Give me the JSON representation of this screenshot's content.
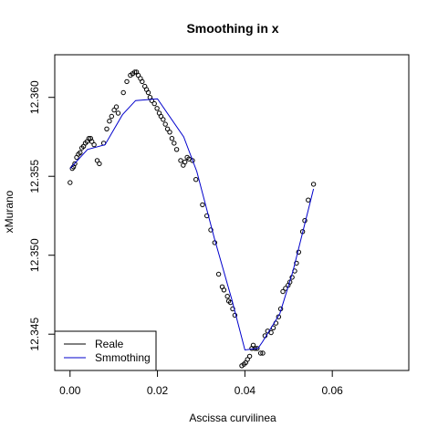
{
  "chart_data": {
    "type": "scatter",
    "title": "Smoothing in x",
    "xlabel": "Ascissa curvilinea",
    "ylabel": "xMurano",
    "xlim": [
      -0.0035,
      0.0775
    ],
    "ylim": [
      12.3427,
      12.3627
    ],
    "x_ticks": [
      0.0,
      0.02,
      0.04,
      0.06
    ],
    "x_tick_labels": [
      "0.00",
      "0.02",
      "0.04",
      "0.06"
    ],
    "y_ticks": [
      12.345,
      12.35,
      12.355,
      12.36
    ],
    "y_tick_labels": [
      "12.345",
      "12.350",
      "12.355",
      "12.360"
    ],
    "grid": false,
    "legend": {
      "position": "bottom-left",
      "entries": [
        {
          "label": "Reale",
          "color": "#000000"
        },
        {
          "label": "Smmothing",
          "color": "#0000cc"
        }
      ]
    },
    "series": [
      {
        "name": "Reale",
        "kind": "points",
        "color": "#000000",
        "points": [
          [
            0.0,
            12.3546
          ],
          [
            0.0005,
            12.3555
          ],
          [
            0.0008,
            12.3556
          ],
          [
            0.0011,
            12.3558
          ],
          [
            0.0015,
            12.3562
          ],
          [
            0.0019,
            12.3564
          ],
          [
            0.0023,
            12.3565
          ],
          [
            0.0027,
            12.3568
          ],
          [
            0.0031,
            12.3569
          ],
          [
            0.0035,
            12.3571
          ],
          [
            0.0039,
            12.3572
          ],
          [
            0.0043,
            12.3574
          ],
          [
            0.0047,
            12.3574
          ],
          [
            0.005,
            12.3572
          ],
          [
            0.0055,
            12.357
          ],
          [
            0.0062,
            12.356
          ],
          [
            0.0067,
            12.3558
          ],
          [
            0.0077,
            12.3571
          ],
          [
            0.0084,
            12.358
          ],
          [
            0.009,
            12.3585
          ],
          [
            0.0095,
            12.3588
          ],
          [
            0.0101,
            12.3592
          ],
          [
            0.0106,
            12.3594
          ],
          [
            0.011,
            12.359
          ],
          [
            0.0122,
            12.3603
          ],
          [
            0.013,
            12.361
          ],
          [
            0.0138,
            12.3614
          ],
          [
            0.0143,
            12.3615
          ],
          [
            0.0148,
            12.3616
          ],
          [
            0.0152,
            12.3616
          ],
          [
            0.0156,
            12.3614
          ],
          [
            0.0161,
            12.3612
          ],
          [
            0.0165,
            12.361
          ],
          [
            0.0171,
            12.3607
          ],
          [
            0.0175,
            12.3605
          ],
          [
            0.0179,
            12.3603
          ],
          [
            0.0183,
            12.36
          ],
          [
            0.0187,
            12.3598
          ],
          [
            0.0193,
            12.3596
          ],
          [
            0.0199,
            12.3593
          ],
          [
            0.0204,
            12.359
          ],
          [
            0.0208,
            12.3588
          ],
          [
            0.0213,
            12.3586
          ],
          [
            0.0218,
            12.3583
          ],
          [
            0.0223,
            12.358
          ],
          [
            0.0228,
            12.3578
          ],
          [
            0.0233,
            12.3574
          ],
          [
            0.0238,
            12.3571
          ],
          [
            0.0244,
            12.3567
          ],
          [
            0.0253,
            12.356
          ],
          [
            0.0259,
            12.3557
          ],
          [
            0.0263,
            12.3559
          ],
          [
            0.0268,
            12.3562
          ],
          [
            0.0272,
            12.3561
          ],
          [
            0.028,
            12.356
          ],
          [
            0.0288,
            12.3548
          ],
          [
            0.0303,
            12.3532
          ],
          [
            0.0313,
            12.3525
          ],
          [
            0.0322,
            12.3516
          ],
          [
            0.0331,
            12.3508
          ],
          [
            0.034,
            12.3488
          ],
          [
            0.0348,
            12.348
          ],
          [
            0.0352,
            12.3478
          ],
          [
            0.036,
            12.3474
          ],
          [
            0.0363,
            12.3471
          ],
          [
            0.0367,
            12.347
          ],
          [
            0.0372,
            12.3466
          ],
          [
            0.0377,
            12.3462
          ],
          [
            0.0393,
            12.343
          ],
          [
            0.0398,
            12.3431
          ],
          [
            0.0402,
            12.3432
          ],
          [
            0.0406,
            12.3434
          ],
          [
            0.0411,
            12.3436
          ],
          [
            0.0416,
            12.3441
          ],
          [
            0.0419,
            12.3443
          ],
          [
            0.0423,
            12.3441
          ],
          [
            0.0428,
            12.3441
          ],
          [
            0.0436,
            12.3438
          ],
          [
            0.0441,
            12.3438
          ],
          [
            0.0446,
            12.3449
          ],
          [
            0.0452,
            12.3452
          ],
          [
            0.046,
            12.3451
          ],
          [
            0.0465,
            12.3454
          ],
          [
            0.0471,
            12.3457
          ],
          [
            0.0477,
            12.3461
          ],
          [
            0.0482,
            12.3466
          ],
          [
            0.0487,
            12.3477
          ],
          [
            0.0493,
            12.3479
          ],
          [
            0.0499,
            12.3481
          ],
          [
            0.0503,
            12.3483
          ],
          [
            0.0508,
            12.3486
          ],
          [
            0.0514,
            12.349
          ],
          [
            0.0518,
            12.3495
          ],
          [
            0.0523,
            12.3502
          ],
          [
            0.0532,
            12.3515
          ],
          [
            0.0537,
            12.3522
          ],
          [
            0.0545,
            12.3535
          ],
          [
            0.0557,
            12.3545
          ]
        ]
      },
      {
        "name": "Smmothing",
        "kind": "line",
        "color": "#0000cc",
        "points": [
          [
            0.0,
            12.3555
          ],
          [
            0.004,
            12.3567
          ],
          [
            0.008,
            12.357
          ],
          [
            0.012,
            12.3589
          ],
          [
            0.015,
            12.3598
          ],
          [
            0.02,
            12.3599
          ],
          [
            0.026,
            12.3575
          ],
          [
            0.029,
            12.3553
          ],
          [
            0.033,
            12.3511
          ],
          [
            0.037,
            12.3472
          ],
          [
            0.04,
            12.344
          ],
          [
            0.043,
            12.3441
          ],
          [
            0.044,
            12.3445
          ],
          [
            0.048,
            12.3463
          ],
          [
            0.051,
            12.349
          ],
          [
            0.0557,
            12.3542
          ]
        ]
      }
    ]
  }
}
